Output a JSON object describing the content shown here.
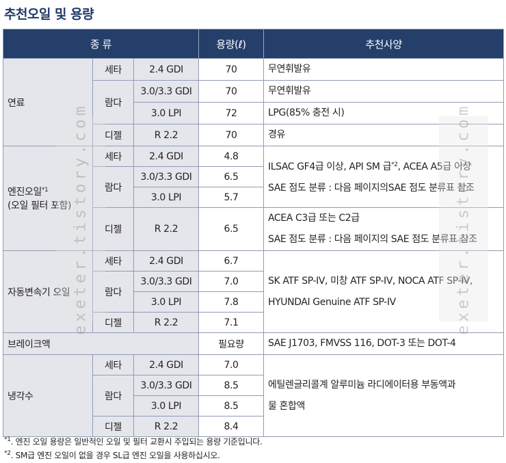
{
  "title": "추천오일 및 용량",
  "watermark": "exeter.tistory.com",
  "table": {
    "header": [
      "종 류",
      "용량(ℓ)",
      "추천사양"
    ],
    "groups": [
      {
        "label": [
          "연료"
        ],
        "rows": [
          {
            "engine": "세타",
            "variant": "2.4 GDI",
            "capacity": "70",
            "spec": [
              "무연휘발유"
            ]
          },
          {
            "engine": "람다",
            "variant": "3.0/3.3 GDI",
            "capacity": "70",
            "spec": [
              "무연휘발유"
            ]
          },
          {
            "engine": null,
            "variant": "3.0 LPI",
            "capacity": "72",
            "spec": [
              "LPG(85% 충전 시)"
            ]
          },
          {
            "engine": "디젤",
            "variant": "R 2.2",
            "capacity": "70",
            "spec": [
              "경유"
            ]
          }
        ]
      },
      {
        "label": [
          [
            "엔진오일",
            {
              "sup": "*1"
            }
          ],
          "(오일 필터 포함)"
        ],
        "rows": [
          {
            "engine": "세타",
            "variant": "2.4 GDI",
            "capacity": "4.8",
            "spec": [
              [
                "ILSAC GF4급 이상, API SM 급",
                {
                  "sup": "*2"
                },
                ", ACEA A5급 이상"
              ],
              "SAE 점도 분류 : 다음 페이지의SAE 점도 분류표 참조"
            ]
          },
          {
            "engine": "람다",
            "variant": "3.0/3.3 GDI",
            "capacity": "6.5",
            "spec": null
          },
          {
            "engine": null,
            "variant": "3.0 LPI",
            "capacity": "5.7",
            "spec": null
          },
          {
            "engine": "디젤",
            "variant": "R 2.2",
            "capacity": "6.5",
            "spec": [
              "ACEA C3급 또는 C2급",
              "SAE 점도 분류 : 다음 페이지의 SAE 점도 분류표 참조"
            ]
          }
        ]
      },
      {
        "label": [
          "자동변속기 오일"
        ],
        "rows": [
          {
            "engine": "세타",
            "variant": "2.4 GDI",
            "capacity": "6.7",
            "spec": [
              "SK ATF SP-IV, 미창 ATF SP-IV, NOCA ATF SP-IV,",
              "HYUNDAI Genuine ATF SP-IV"
            ]
          },
          {
            "engine": "람다",
            "variant": "3.0/3.3 GDI",
            "capacity": "7.0",
            "spec": null
          },
          {
            "engine": null,
            "variant": "3.0 LPI",
            "capacity": "7.8",
            "spec": null
          },
          {
            "engine": "디젤",
            "variant": "R 2.2",
            "capacity": "7.1",
            "spec": null
          }
        ]
      },
      {
        "label": [
          "브레이크액"
        ],
        "rows": [
          {
            "capacity": "필요량",
            "spec": [
              "SAE J1703, FMVSS 116, DOT-3 또는 DOT-4"
            ]
          }
        ]
      },
      {
        "label": [
          "냉각수"
        ],
        "rows": [
          {
            "engine": "세타",
            "variant": "2.4 GDI",
            "capacity": "7.0",
            "spec": [
              "에틸렌글리콜계 알루미늄 라디에이터용 부동액과",
              "물 혼합액"
            ]
          },
          {
            "engine": "람다",
            "variant": "3.0/3.3 GDI",
            "capacity": "8.5",
            "spec": null
          },
          {
            "engine": null,
            "variant": "3.0 LPI",
            "capacity": "8.5",
            "spec": null
          },
          {
            "engine": "디젤",
            "variant": "R 2.2",
            "capacity": "8.4",
            "spec": null
          }
        ]
      }
    ]
  },
  "footnotes": [
    [
      {
        "sup": "*1"
      },
      ". 엔진 오일 용량은 일반적인 오일 및 필터 교환시 주입되는 용량 기준입니다."
    ],
    [
      {
        "sup": "*2"
      },
      ". SM급 엔진 오일이 없을 경우 SL급 엔진 오일을 사용하십시오."
    ]
  ]
}
